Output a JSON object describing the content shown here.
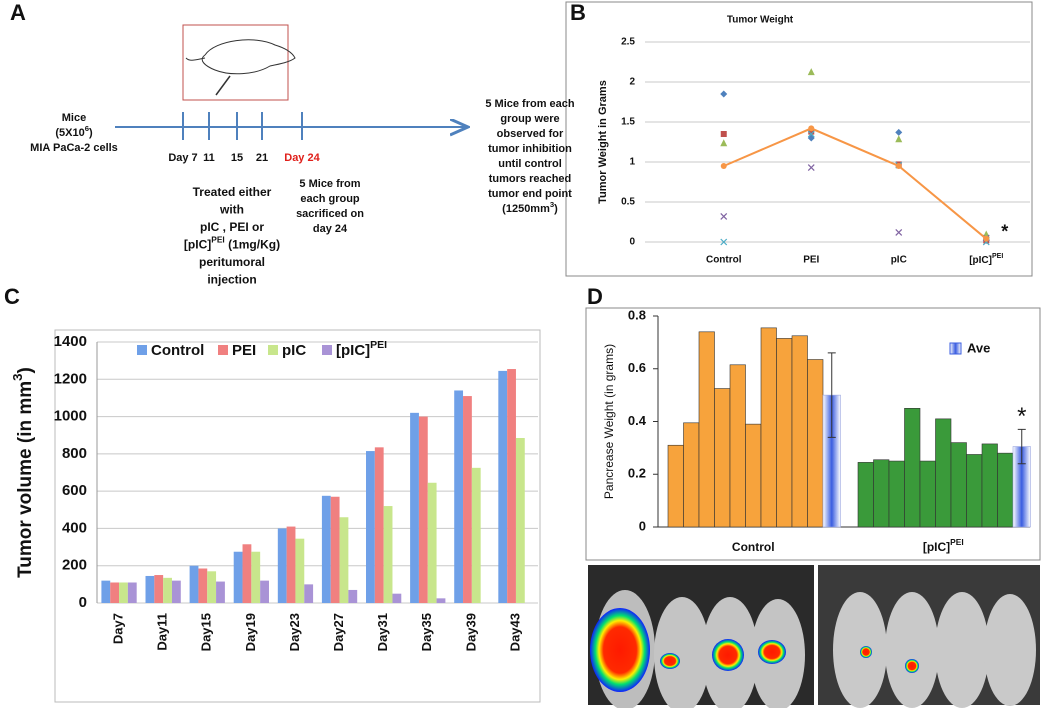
{
  "panel_labels": [
    "A",
    "B",
    "C",
    "D"
  ],
  "timeline": {
    "mice": [
      [
        "Mice"
      ],
      [
        "(5X10",
        {
          "sup": "6"
        },
        ")"
      ],
      [
        "MIA PaCa-2 cells"
      ]
    ],
    "days": [
      "Day 7",
      "11",
      "15",
      "21",
      "Day 24"
    ],
    "highlight_index": 4,
    "highlight_color": "#e0201b",
    "treatment": [
      [
        "Treated either"
      ],
      [
        "with"
      ],
      [
        "pIC , PEI or"
      ],
      [
        "[pIC]",
        {
          "sup": "PEI"
        },
        " (1mg/Kg)"
      ],
      [
        "peritumoral"
      ],
      [
        "injection"
      ]
    ],
    "sacrificed": [
      [
        "5 Mice from"
      ],
      [
        "each group"
      ],
      [
        "sacrificed on"
      ],
      [
        "day 24"
      ]
    ],
    "observed": [
      [
        "5 Mice from each"
      ],
      [
        "group  were"
      ],
      [
        "observed for"
      ],
      [
        "tumor inhibition"
      ],
      [
        "until control"
      ],
      [
        "tumors reached"
      ],
      [
        "tumor end point"
      ],
      [
        "(1250mm",
        {
          "sup": "3"
        },
        ")"
      ]
    ]
  },
  "chart_data": [
    {
      "type": "scatter",
      "title": "Tumor Weight",
      "ylabel": "Tumor Weight in Grams",
      "categories": [
        "Control",
        "PEI",
        "pIC",
        [
          "[pIC]",
          {
            "sup": "PEI"
          }
        ]
      ],
      "series": [
        {
          "marker": "diamond",
          "color": "#4f81bd",
          "values": [
            1.85,
            1.3,
            1.37,
            0.02
          ]
        },
        {
          "marker": "square",
          "color": "#c0504d",
          "values": [
            1.35,
            1.38,
            0.97,
            0.02
          ]
        },
        {
          "marker": "triangle",
          "color": "#9bbb59",
          "values": [
            1.24,
            2.13,
            1.29,
            0.1
          ]
        },
        {
          "marker": "x",
          "color": "#8064a2",
          "values": [
            0.32,
            0.93,
            0.12,
            0.05
          ]
        },
        {
          "marker": "x",
          "color": "#4bacc6",
          "values": [
            0,
            1.35,
            0.96,
            0
          ]
        },
        {
          "marker": "circle",
          "color": "#f79646",
          "line": true,
          "values": [
            0.95,
            1.42,
            0.95,
            0.04
          ]
        }
      ],
      "ylim": [
        0,
        2.5
      ],
      "yticks": [
        0,
        0.5,
        1,
        1.5,
        2,
        2.5
      ],
      "grid": true,
      "annotation": "*"
    },
    {
      "type": "bar",
      "ylabel": [
        "Tumor volume (in mm",
        {
          "sup": "3"
        },
        ")"
      ],
      "categories": [
        "Day7",
        "Day11",
        "Day15",
        "Day19",
        "Day23",
        "Day27",
        "Day31",
        "Day35",
        "Day39",
        "Day43"
      ],
      "series": [
        {
          "name": "Control",
          "color": "#6fa0e8",
          "values": [
            120,
            145,
            200,
            275,
            400,
            575,
            815,
            1020,
            1140,
            1245
          ]
        },
        {
          "name": "PEI",
          "color": "#f08080",
          "values": [
            110,
            150,
            185,
            315,
            410,
            570,
            835,
            1000,
            1110,
            1255
          ]
        },
        {
          "name": "pIC",
          "color": "#c8e68c",
          "values": [
            110,
            135,
            170,
            275,
            345,
            460,
            520,
            645,
            725,
            885
          ]
        },
        {
          "name": [
            "[pIC]",
            {
              "sup": "PEI"
            }
          ],
          "color": "#a993d6",
          "values": [
            110,
            120,
            115,
            120,
            100,
            70,
            50,
            25,
            null,
            null
          ]
        }
      ],
      "ylim": [
        0,
        1400
      ],
      "yticks": [
        0,
        200,
        400,
        600,
        800,
        1000,
        1200,
        1400
      ],
      "grid": true
    },
    {
      "type": "grouped_average",
      "ylabel": "Pancrease Weight (in grams)",
      "groups": [
        {
          "name": "Control",
          "color": "#f7a33c",
          "values": [
            0.31,
            0.395,
            0.74,
            0.525,
            0.615,
            0.39,
            0.755,
            0.715,
            0.725,
            0.635
          ],
          "average": 0.5,
          "error": 0.16
        },
        {
          "name": [
            "[pIC]",
            {
              "sup": "PEI"
            }
          ],
          "color": "#3a9a3a",
          "values": [
            0.245,
            0.255,
            0.25,
            0.45,
            0.25,
            0.41,
            0.32,
            0.275,
            0.315,
            0.28
          ],
          "average": 0.305,
          "error": 0.065,
          "annotation": "*"
        }
      ],
      "average_label": "Ave",
      "average_color": "#3a5de0",
      "ylim": [
        0,
        0.8
      ],
      "yticks": [
        0,
        0.2,
        0.4,
        0.6,
        0.8
      ]
    }
  ]
}
